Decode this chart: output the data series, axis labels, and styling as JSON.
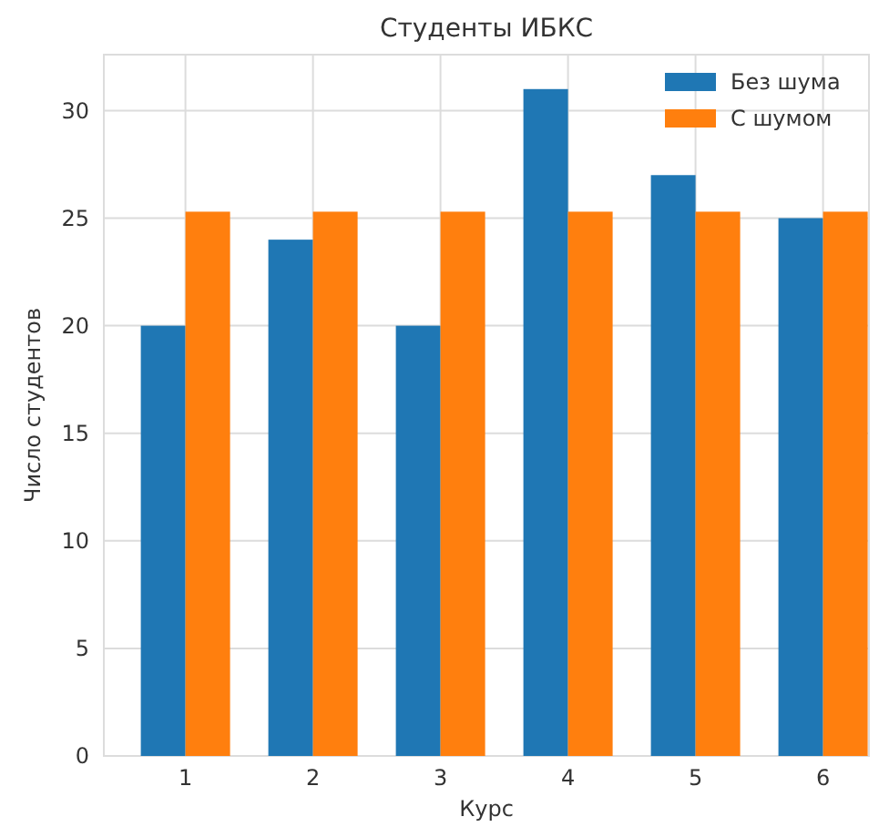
{
  "chart_data": {
    "type": "bar",
    "title": "Студенты ИБКС",
    "xlabel": "Курс",
    "ylabel": "Число студентов",
    "categories": [
      "1",
      "2",
      "3",
      "4",
      "5",
      "6"
    ],
    "series": [
      {
        "name": "Без шума",
        "color": "#1f77b4",
        "values": [
          20,
          24,
          20,
          31,
          27,
          25
        ]
      },
      {
        "name": "С шумом",
        "color": "#ff7f0e",
        "values": [
          25.3,
          25.3,
          25.3,
          25.3,
          25.3,
          25.3
        ]
      }
    ],
    "ylim": [
      0,
      32.6
    ],
    "yticks": [
      0,
      5,
      10,
      15,
      20,
      25,
      30
    ],
    "grid": true,
    "legend": "top right"
  }
}
